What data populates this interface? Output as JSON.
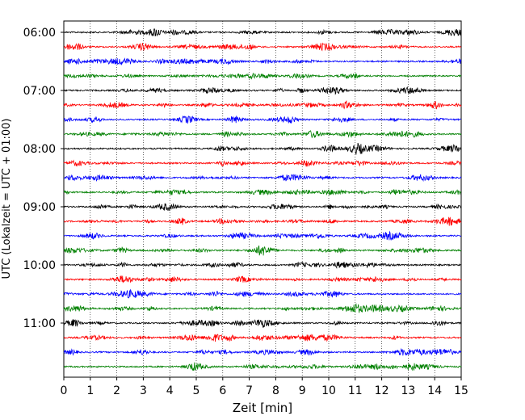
{
  "chart_data": {
    "type": "line",
    "title": "",
    "xlabel": "Zeit  [min]",
    "ylabel": "UTC (Lokalzeit = UTC + 01:00)",
    "xlim": [
      0,
      15
    ],
    "x_ticks": [
      "0",
      "1",
      "2",
      "3",
      "4",
      "5",
      "6",
      "7",
      "8",
      "9",
      "10",
      "11",
      "12",
      "13",
      "14",
      "15"
    ],
    "y_tick_labels": [
      "06:00",
      "07:00",
      "08:00",
      "09:00",
      "10:00",
      "11:00"
    ],
    "grid": "vertical dotted at each minute",
    "traces": {
      "interval_minutes": 15,
      "start": "06:00",
      "count": 24,
      "colors_cycle": [
        "#000000",
        "#ff0000",
        "#0000ff",
        "#008000"
      ],
      "signal": "seismic noise, low amplitude"
    }
  }
}
